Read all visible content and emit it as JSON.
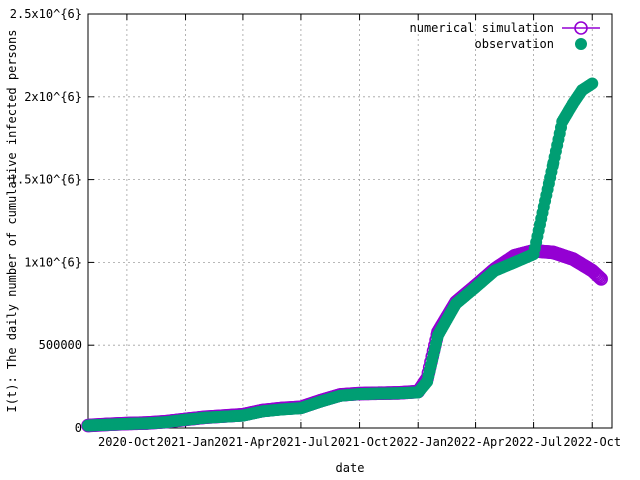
{
  "chart_data": {
    "type": "scatter",
    "xlabel": "date",
    "ylabel": "I(t): The daily number of cumulative infected persons",
    "x_tick_labels": [
      "2020-Oct",
      "2021-Jan",
      "2021-Apr",
      "2021-Jul",
      "2021-Oct",
      "2022-Jan",
      "2022-Apr",
      "2022-Jul",
      "2022-Oct"
    ],
    "x_tick_dates": [
      "2020-10-01",
      "2021-01-01",
      "2021-04-01",
      "2021-07-01",
      "2021-10-01",
      "2022-01-01",
      "2022-04-01",
      "2022-07-01",
      "2022-10-01"
    ],
    "x_range": [
      "2020-08-01",
      "2022-11-01"
    ],
    "y_tick_labels": [
      "0",
      "500000",
      "1x10^{6}",
      "1.5x10^{6}",
      "2x10^{6}",
      "2.5x10^{6}"
    ],
    "y_tick_values": [
      0,
      500000,
      1000000,
      1500000,
      2000000,
      2500000
    ],
    "ylim": [
      0,
      2500000
    ],
    "grid": true,
    "legend_position": "top-right",
    "series": [
      {
        "name": "numerical simulation",
        "color": "#9400d3",
        "marker": "open-circle",
        "points": [
          [
            "2020-08-01",
            15000
          ],
          [
            "2020-09-01",
            22000
          ],
          [
            "2020-10-01",
            27000
          ],
          [
            "2020-11-01",
            30000
          ],
          [
            "2020-12-01",
            38000
          ],
          [
            "2021-01-01",
            52000
          ],
          [
            "2021-02-01",
            65000
          ],
          [
            "2021-03-01",
            72000
          ],
          [
            "2021-04-01",
            80000
          ],
          [
            "2021-05-01",
            105000
          ],
          [
            "2021-06-01",
            118000
          ],
          [
            "2021-07-01",
            125000
          ],
          [
            "2021-08-01",
            165000
          ],
          [
            "2021-09-01",
            200000
          ],
          [
            "2021-10-01",
            208000
          ],
          [
            "2021-11-01",
            210000
          ],
          [
            "2021-12-01",
            212000
          ],
          [
            "2022-01-01",
            220000
          ],
          [
            "2022-01-15",
            300000
          ],
          [
            "2022-02-01",
            580000
          ],
          [
            "2022-03-01",
            760000
          ],
          [
            "2022-04-01",
            860000
          ],
          [
            "2022-05-01",
            960000
          ],
          [
            "2022-06-01",
            1040000
          ],
          [
            "2022-07-01",
            1070000
          ],
          [
            "2022-08-01",
            1060000
          ],
          [
            "2022-09-01",
            1020000
          ],
          [
            "2022-10-01",
            950000
          ],
          [
            "2022-10-15",
            900000
          ]
        ]
      },
      {
        "name": "observation",
        "color": "#009e73",
        "marker": "filled-circle",
        "points": [
          [
            "2020-08-01",
            15000
          ],
          [
            "2020-09-01",
            20000
          ],
          [
            "2020-10-01",
            25000
          ],
          [
            "2020-11-01",
            28000
          ],
          [
            "2020-12-01",
            35000
          ],
          [
            "2021-01-01",
            50000
          ],
          [
            "2021-02-01",
            62000
          ],
          [
            "2021-03-01",
            68000
          ],
          [
            "2021-04-01",
            75000
          ],
          [
            "2021-05-01",
            100000
          ],
          [
            "2021-06-01",
            112000
          ],
          [
            "2021-07-01",
            120000
          ],
          [
            "2021-08-01",
            160000
          ],
          [
            "2021-09-01",
            195000
          ],
          [
            "2021-10-01",
            205000
          ],
          [
            "2021-11-01",
            208000
          ],
          [
            "2021-12-01",
            210000
          ],
          [
            "2022-01-01",
            215000
          ],
          [
            "2022-01-15",
            280000
          ],
          [
            "2022-02-01",
            560000
          ],
          [
            "2022-03-01",
            750000
          ],
          [
            "2022-04-01",
            850000
          ],
          [
            "2022-05-01",
            950000
          ],
          [
            "2022-06-01",
            1000000
          ],
          [
            "2022-07-01",
            1050000
          ],
          [
            "2022-07-15",
            1300000
          ],
          [
            "2022-08-01",
            1600000
          ],
          [
            "2022-08-15",
            1850000
          ],
          [
            "2022-09-01",
            1960000
          ],
          [
            "2022-09-15",
            2040000
          ],
          [
            "2022-10-01",
            2080000
          ]
        ]
      }
    ]
  }
}
